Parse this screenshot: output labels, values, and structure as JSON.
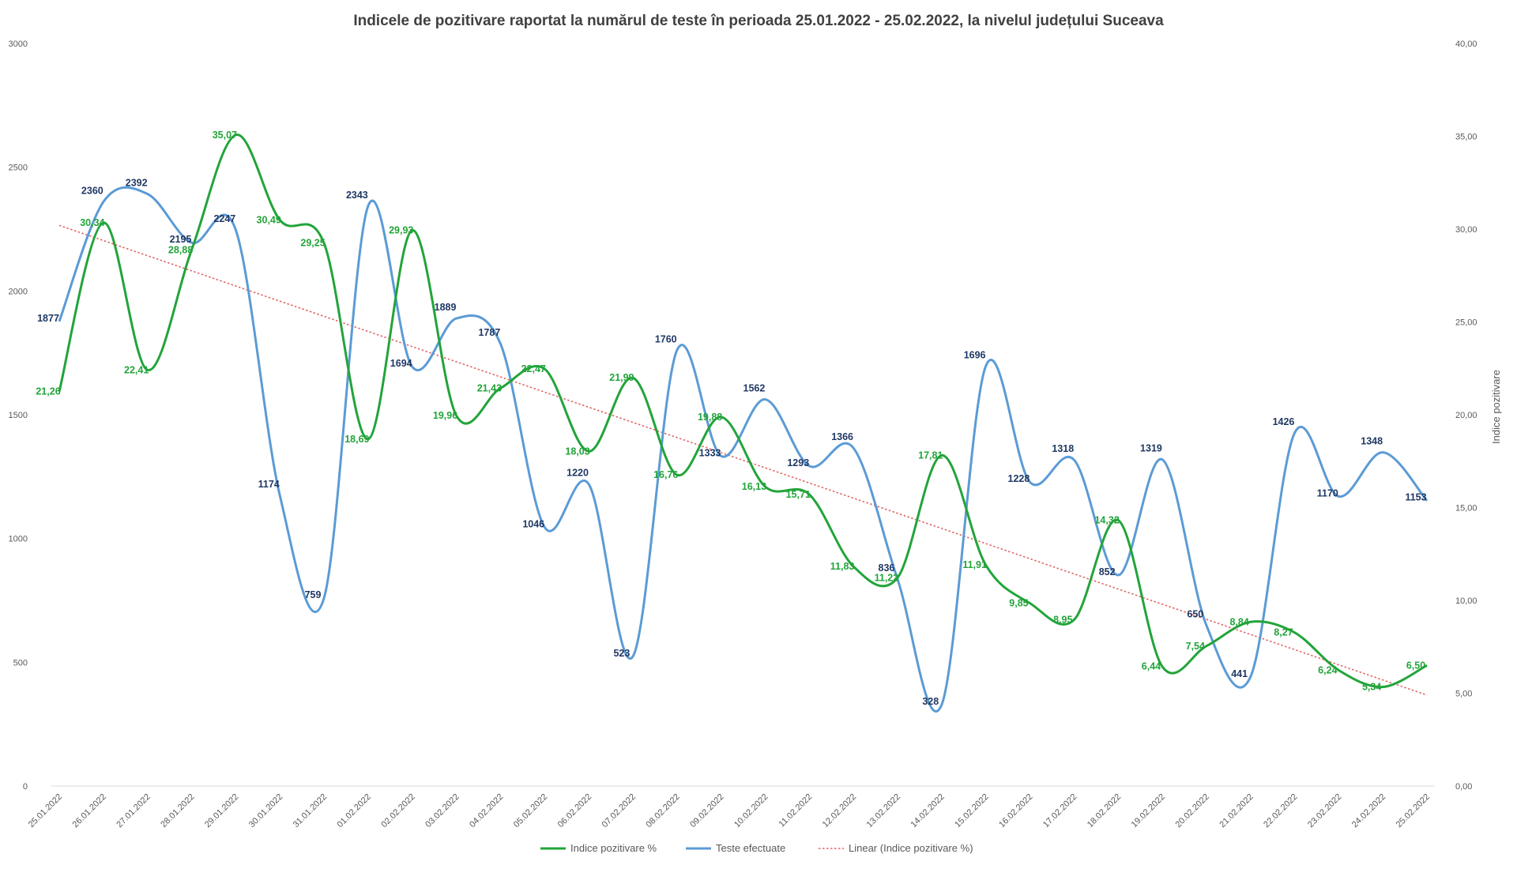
{
  "chart_data": {
    "type": "line",
    "title": "Indicele de pozitivare  raportat la numărul de teste în perioada  25.01.2022 - 25.02.2022, la nivelul județului  Suceava",
    "y2label": "Indice pozitivare",
    "ylim": [
      0,
      3000
    ],
    "y2lim": [
      0,
      40
    ],
    "yticks": [
      "0",
      "500",
      "1000",
      "1500",
      "2000",
      "2500",
      "3000"
    ],
    "y2ticks": [
      "0,00",
      "5,00",
      "10,00",
      "15,00",
      "20,00",
      "25,00",
      "30,00",
      "35,00",
      "40,00"
    ],
    "grid": false,
    "legend_position": "bottom",
    "categories": [
      "25.01.2022",
      "26.01.2022",
      "27.01.2022",
      "28.01.2022",
      "29.01.2022",
      "30.01.2022",
      "31.01.2022",
      "01.02.2022",
      "02.02.2022",
      "03.02.2022",
      "04.02.2022",
      "05.02.2022",
      "06.02.2022",
      "07.02.2022",
      "08.02.2022",
      "09.02.2022",
      "10.02.2022",
      "11.02.2022",
      "12.02.2022",
      "13.02.2022",
      "14.02.2022",
      "15.02.2022",
      "16.02.2022",
      "17.02.2022",
      "18.02.2022",
      "19.02.2022",
      "20.02.2022",
      "21.02.2022",
      "22.02.2022",
      "23.02.2022",
      "24.02.2022",
      "25.02.2022"
    ],
    "series": [
      {
        "name": "Indice pozitivare %",
        "axis": "right",
        "color": "#22a43a",
        "values": [
          21.26,
          30.34,
          22.41,
          28.88,
          35.07,
          30.49,
          29.25,
          18.69,
          29.93,
          19.96,
          21.43,
          22.47,
          18.03,
          21.99,
          16.76,
          19.88,
          16.13,
          15.71,
          11.83,
          11.22,
          17.81,
          11.91,
          9.85,
          8.95,
          14.32,
          6.44,
          7.54,
          8.84,
          8.27,
          6.24,
          5.34,
          6.5
        ],
        "labels": [
          "21,26",
          "30,34",
          "22,41",
          "28,88",
          "35,07",
          "30,49",
          "29,25",
          "18,69",
          "29,93",
          "19,96",
          "21,43",
          "22,47",
          "18,03",
          "21,99",
          "16,76",
          "19,88",
          "16,13",
          "15,71",
          "11,83",
          "11,22",
          "17,81",
          "11,91",
          "9,85",
          "8,95",
          "14,32",
          "6,44",
          "7,54",
          "8,84",
          "8,27",
          "6,24",
          "5,34",
          "6,50"
        ]
      },
      {
        "name": "Teste efectuate",
        "axis": "left",
        "color": "#5b9bd5",
        "values": [
          1877,
          2360,
          2392,
          2195,
          2247,
          1174,
          759,
          2343,
          1694,
          1889,
          1787,
          1046,
          1220,
          523,
          1760,
          1333,
          1562,
          1293,
          1366,
          836,
          328,
          1696,
          1228,
          1318,
          852,
          1319,
          650,
          441,
          1426,
          1170,
          1348,
          1153
        ],
        "labels": [
          "1877",
          "2360",
          "2392",
          "2195",
          "2247",
          "1174",
          "759",
          "2343",
          "1694",
          "1889",
          "1787",
          "1046",
          "1220",
          "523",
          "1760",
          "1333",
          "1562",
          "1293",
          "1366",
          "836",
          "328",
          "1696",
          "1228",
          "1318",
          "852",
          "1319",
          "650",
          "441",
          "1426",
          "1170",
          "1348",
          "1153"
        ]
      }
    ],
    "trendline": {
      "name": "Linear (Indice pozitivare %)",
      "color": "#e06666",
      "axis": "right",
      "start": 30.2,
      "end": 4.9
    }
  }
}
